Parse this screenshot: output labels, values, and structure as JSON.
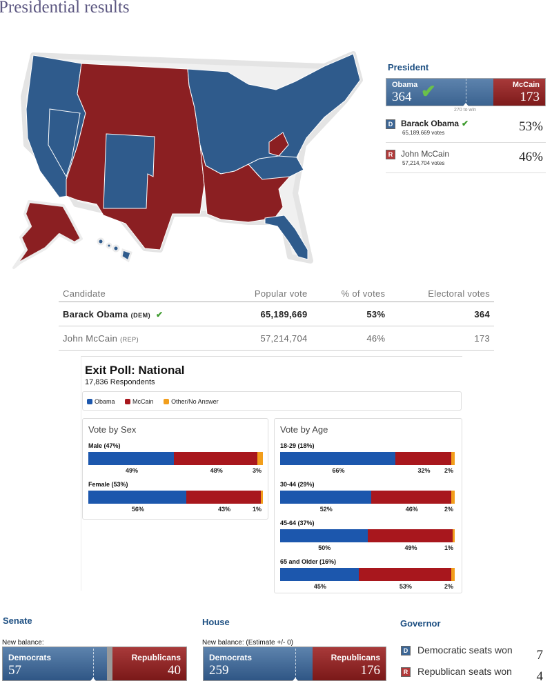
{
  "page_title": "Presidential results",
  "colors": {
    "dem": "#2f5f91",
    "rep": "#8b1f22",
    "obama": "#1c57ad",
    "mccain": "#a8171d",
    "other": "#f29e1b"
  },
  "president": {
    "heading": "President",
    "dem_name": "Obama",
    "dem_ev": "364",
    "rep_name": "McCain",
    "rep_ev": "173",
    "to_win": "270 to win",
    "check_icon": "check-icon",
    "candidates": [
      {
        "badge": "D",
        "name": "Barack Obama",
        "votes": "65,189,669 votes",
        "pct": "53%"
      },
      {
        "badge": "R",
        "name": "John McCain",
        "votes": "57,214,704 votes",
        "pct": "46%"
      }
    ]
  },
  "results_table": {
    "headers": [
      "Candidate",
      "Popular vote",
      "% of votes",
      "Electoral votes"
    ],
    "rows": [
      {
        "name": "Barack Obama",
        "party": "(DEM)",
        "popular": "65,189,669",
        "pct": "53%",
        "electoral": "364"
      },
      {
        "name": "John McCain",
        "party": "(REP)",
        "popular": "57,214,704",
        "pct": "46%",
        "electoral": "173"
      }
    ]
  },
  "exit_poll": {
    "title": "Exit Poll: National",
    "subtitle": "17,836 Respondents",
    "legend": [
      "Obama",
      "McCain",
      "Other/No Answer"
    ],
    "by_sex": {
      "title": "Vote by Sex",
      "groups": [
        {
          "label": "Male (47%)",
          "obama": 49,
          "mccain": 48,
          "other": 3,
          "obama_label": "49%",
          "mccain_label": "48%",
          "other_label": "3%"
        },
        {
          "label": "Female (53%)",
          "obama": 56,
          "mccain": 43,
          "other": 1,
          "obama_label": "56%",
          "mccain_label": "43%",
          "other_label": "1%"
        }
      ]
    },
    "by_age": {
      "title": "Vote by Age",
      "groups": [
        {
          "label": "18-29 (18%)",
          "obama": 66,
          "mccain": 32,
          "other": 2,
          "obama_label": "66%",
          "mccain_label": "32%",
          "other_label": "2%"
        },
        {
          "label": "30-44 (29%)",
          "obama": 52,
          "mccain": 46,
          "other": 2,
          "obama_label": "52%",
          "mccain_label": "46%",
          "other_label": "2%"
        },
        {
          "label": "45-64 (37%)",
          "obama": 50,
          "mccain": 49,
          "other": 1,
          "obama_label": "50%",
          "mccain_label": "49%",
          "other_label": "1%"
        },
        {
          "label": "65 and Older (16%)",
          "obama": 45,
          "mccain": 53,
          "other": 2,
          "obama_label": "45%",
          "mccain_label": "53%",
          "other_label": "2%"
        }
      ]
    }
  },
  "senate": {
    "heading": "Senate",
    "balance_label": "New balance:",
    "dem_label": "Democrats",
    "dem_seats": "57",
    "rep_label": "Republicans",
    "rep_seats": "40"
  },
  "house": {
    "heading": "House",
    "balance_label": "New balance: (Estimate +/- 0)",
    "dem_label": "Democrats",
    "dem_seats": "259",
    "rep_label": "Republicans",
    "rep_seats": "176"
  },
  "governor": {
    "heading": "Governor",
    "rows": [
      {
        "badge": "D",
        "label": "Democratic seats won",
        "value": "7"
      },
      {
        "badge": "R",
        "label": "Republican seats won",
        "value": "4"
      }
    ]
  }
}
